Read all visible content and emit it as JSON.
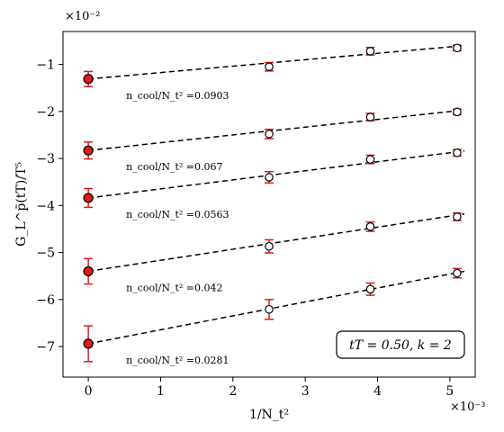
{
  "chart_data": {
    "type": "scatter",
    "title": "",
    "xlabel": "1/N_t²",
    "ylabel": "G_L^p̄(tT)/T⁵",
    "x_exponent_label": "×10⁻³",
    "y_exponent_label": "×10⁻²",
    "xlim": [
      -0.35,
      5.35
    ],
    "ylim": [
      -7.65,
      -0.3
    ],
    "x_scale_factor": 0.001,
    "y_scale_factor": 0.01,
    "x_ticks": [
      0,
      1,
      2,
      3,
      4,
      5
    ],
    "x_tick_labels": [
      "0",
      "1",
      "2",
      "3",
      "4",
      "5"
    ],
    "y_ticks": [
      -7,
      -6,
      -5,
      -4,
      -3,
      -2,
      -1
    ],
    "y_tick_labels": [
      "−7",
      "−6",
      "−5",
      "−4",
      "−3",
      "−2",
      "−1"
    ],
    "annotation_box": "tT = 0.50, k = 2",
    "series": [
      {
        "label": "n_cool/N_t² =0.0903",
        "points": [
          {
            "x": 2.5,
            "y": -1.05,
            "err": 0.09
          },
          {
            "x": 3.9,
            "y": -0.72,
            "err": 0.08
          },
          {
            "x": 5.1,
            "y": -0.65,
            "err": 0.06
          }
        ],
        "extrapolated": {
          "x": 0,
          "y": -1.31,
          "err": 0.16
        },
        "fit_end": -0.6
      },
      {
        "label": "n_cool/N_t² =0.067",
        "points": [
          {
            "x": 2.5,
            "y": -2.48,
            "err": 0.1
          },
          {
            "x": 3.9,
            "y": -2.12,
            "err": 0.08
          },
          {
            "x": 5.1,
            "y": -2.01,
            "err": 0.06
          }
        ],
        "extrapolated": {
          "x": 0,
          "y": -2.83,
          "err": 0.18
        },
        "fit_end": -1.97
      },
      {
        "label": "n_cool/N_t² =0.0563",
        "points": [
          {
            "x": 2.5,
            "y": -3.4,
            "err": 0.12
          },
          {
            "x": 3.9,
            "y": -3.02,
            "err": 0.09
          },
          {
            "x": 5.1,
            "y": -2.88,
            "err": 0.07
          }
        ],
        "extrapolated": {
          "x": 0,
          "y": -3.84,
          "err": 0.2
        },
        "fit_end": -2.84
      },
      {
        "label": "n_cool/N_t² =0.042",
        "points": [
          {
            "x": 2.5,
            "y": -4.87,
            "err": 0.14
          },
          {
            "x": 3.9,
            "y": -4.45,
            "err": 0.1
          },
          {
            "x": 5.1,
            "y": -4.24,
            "err": 0.08
          }
        ],
        "extrapolated": {
          "x": 0,
          "y": -5.4,
          "err": 0.27
        },
        "fit_end": -4.18
      },
      {
        "label": "n_cool/N_t² =0.0281",
        "points": [
          {
            "x": 2.5,
            "y": -6.21,
            "err": 0.21
          },
          {
            "x": 3.9,
            "y": -5.78,
            "err": 0.13
          },
          {
            "x": 5.1,
            "y": -5.44,
            "err": 0.1
          }
        ],
        "extrapolated": {
          "x": 0,
          "y": -6.94,
          "err": 0.38
        },
        "fit_end": -5.4
      }
    ],
    "fit_x_end": 5.2,
    "colors": {
      "axis": "#000000",
      "error_bar": "#e31a1c",
      "marker_fill_extrapolated": "#e31a1c",
      "marker_edge": "#000000",
      "fit_line": "#000000"
    }
  }
}
